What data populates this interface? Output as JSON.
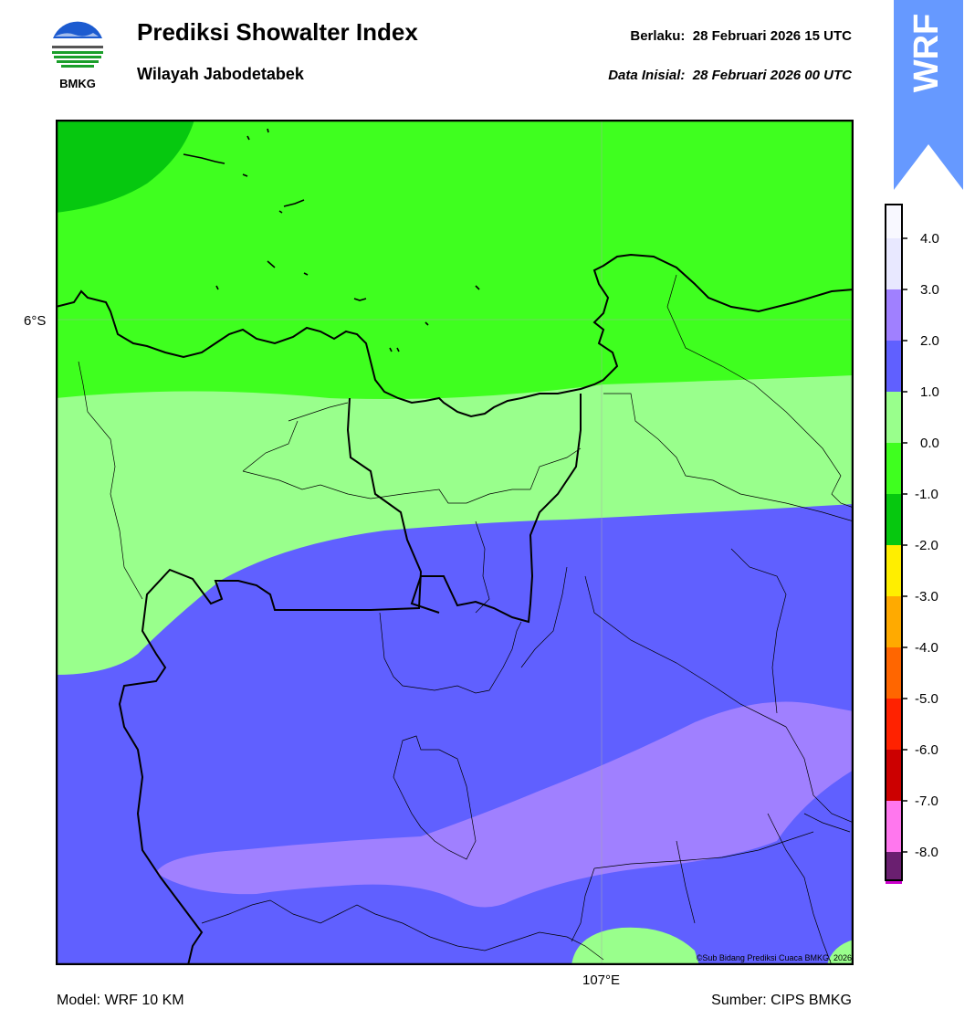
{
  "header": {
    "title": "Prediksi Showalter Index",
    "subtitle": "Wilayah Jabodetabek",
    "valid_label": "Berlaku:",
    "valid_time": "28 Februari 2026 15 UTC",
    "init_label": "Data Inisial:",
    "init_time": "28 Februari 2026 00 UTC"
  },
  "logo": {
    "text": "BMKG",
    "icon": "bmkg-logo-icon"
  },
  "badge": {
    "text": "WRF",
    "color": "#6699ff"
  },
  "map": {
    "lat_label": "6°S",
    "lon_label": "107°E",
    "copyright": "©Sub Bidang Prediksi Cuaca BMKG, 2026"
  },
  "footer": {
    "model": "Model: WRF 10 KM",
    "source": "Sumber: CIPS BMKG"
  },
  "legend": {
    "levels": [
      {
        "label": "4.0",
        "color": "#e8e8ff"
      },
      {
        "label": "3.0",
        "color": "#a080ff"
      },
      {
        "label": "2.0",
        "color": "#6060ff"
      },
      {
        "label": "1.0",
        "color": "#99ff8c"
      },
      {
        "label": "0.0",
        "color": "#3fff1f"
      },
      {
        "label": "-1.0",
        "color": "#06c80f"
      },
      {
        "label": "-2.0",
        "color": "#ffee00"
      },
      {
        "label": "-3.0",
        "color": "#ffaa00"
      },
      {
        "label": "-4.0",
        "color": "#ff6600"
      },
      {
        "label": "-5.0",
        "color": "#ff2200"
      },
      {
        "label": "-6.0",
        "color": "#cc0000"
      },
      {
        "label": "-7.0",
        "color": "#ff77ee"
      },
      {
        "label": "-8.0",
        "color": "#cc00cc"
      }
    ],
    "extra_color_bottom": "#6a1f70",
    "extra_color_top": "#f8f8ff"
  }
}
